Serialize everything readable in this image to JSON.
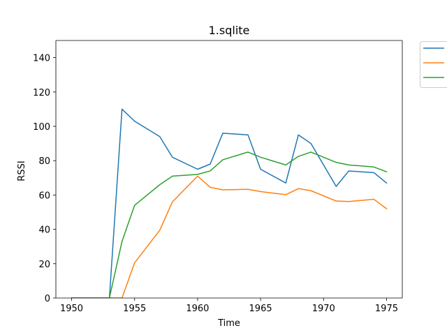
{
  "chart_data": {
    "type": "line",
    "title": "1.sqlite",
    "xlabel": "Time",
    "ylabel": "RSSI",
    "xlim": [
      1948.75,
      1976.25
    ],
    "ylim": [
      0,
      150
    ],
    "xticks": [
      1950,
      1955,
      1960,
      1965,
      1970,
      1975
    ],
    "yticks": [
      0,
      20,
      40,
      60,
      80,
      100,
      120,
      140
    ],
    "grid": false,
    "legend_position": "outside-top-right",
    "series": [
      {
        "color": "#1f77b4",
        "points": [
          [
            1950,
            0
          ],
          [
            1951,
            0
          ],
          [
            1952,
            0
          ],
          [
            1953,
            0
          ],
          [
            1954,
            110
          ],
          [
            1955,
            103
          ],
          [
            1957,
            94
          ],
          [
            1958,
            82
          ],
          [
            1960,
            75
          ],
          [
            1961,
            78
          ],
          [
            1962,
            96
          ],
          [
            1964,
            95
          ],
          [
            1965,
            75
          ],
          [
            1967,
            67
          ],
          [
            1968,
            95
          ],
          [
            1969,
            90
          ],
          [
            1971,
            65
          ],
          [
            1972,
            74
          ],
          [
            1974,
            73
          ],
          [
            1975,
            67
          ]
        ]
      },
      {
        "color": "#ff7f0e",
        "points": [
          [
            1950,
            0
          ],
          [
            1951,
            0
          ],
          [
            1952,
            0
          ],
          [
            1953,
            0
          ],
          [
            1954,
            0
          ],
          [
            1955,
            20.5
          ],
          [
            1957,
            39.5
          ],
          [
            1958,
            56
          ],
          [
            1960,
            71
          ],
          [
            1961,
            64.5
          ],
          [
            1962,
            63
          ],
          [
            1964,
            63.3
          ],
          [
            1965,
            62
          ],
          [
            1967,
            60.2
          ],
          [
            1968,
            63.7
          ],
          [
            1969,
            62.5
          ],
          [
            1971,
            56.5
          ],
          [
            1972,
            56.2
          ],
          [
            1974,
            57.5
          ],
          [
            1975,
            52
          ]
        ]
      },
      {
        "color": "#2ca02c",
        "points": [
          [
            1950,
            0
          ],
          [
            1951,
            0
          ],
          [
            1952,
            0
          ],
          [
            1953,
            0
          ],
          [
            1954,
            33
          ],
          [
            1955,
            54
          ],
          [
            1957,
            66
          ],
          [
            1958,
            71
          ],
          [
            1960,
            72
          ],
          [
            1961,
            74
          ],
          [
            1962,
            80.5
          ],
          [
            1964,
            85
          ],
          [
            1965,
            82
          ],
          [
            1967,
            77.5
          ],
          [
            1968,
            82.5
          ],
          [
            1969,
            85
          ],
          [
            1971,
            79
          ],
          [
            1972,
            77.5
          ],
          [
            1974,
            76.3
          ],
          [
            1975,
            73.5
          ]
        ]
      }
    ]
  }
}
